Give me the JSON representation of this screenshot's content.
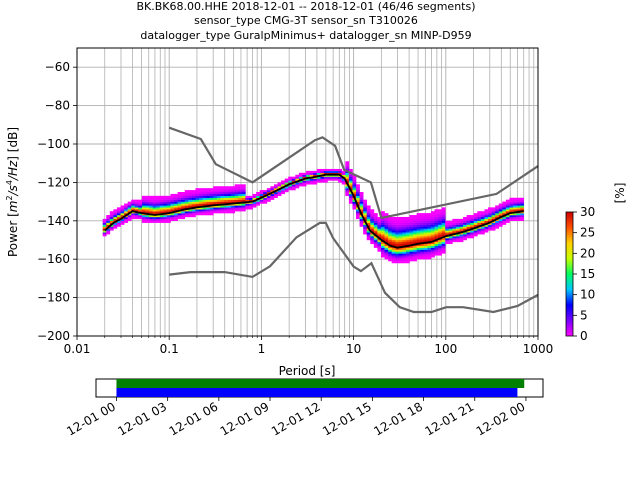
{
  "title": {
    "line1": "BK.BK68.00.HHE   2018-12-01 -- 2018-12-01  (46/46 segments)",
    "line2": "sensor_type CMG-3T sensor_sn T310026",
    "line3": "datalogger_type GuralpMinimus+ datalogger_sn MINP-D959"
  },
  "chart_data": [
    {
      "type": "heatmap",
      "xlabel": "Period [s]",
      "ylabel_main": "Power [",
      "ylabel_m": "m",
      "ylabel_2": "2",
      "ylabel_s": "/s",
      "ylabel_4": "4",
      "ylabel_hz": "/Hz",
      "ylabel_end": "] [dB]",
      "xscale": "log",
      "xlim": [
        0.01,
        1000
      ],
      "ylim": [
        -200,
        -50
      ],
      "grid": true,
      "x_ticks": [
        0.01,
        0.1,
        1,
        10,
        100,
        1000
      ],
      "x_tick_labels": [
        "0.01",
        "0.1",
        "1",
        "10",
        "100",
        "1000"
      ],
      "y_ticks": [
        -200,
        -180,
        -160,
        -140,
        -120,
        -100,
        -80,
        -60
      ],
      "y_tick_labels": [
        "−200",
        "−180",
        "−160",
        "−140",
        "−120",
        "−100",
        "−80",
        "−60"
      ],
      "colorbar": {
        "label": "[%]",
        "range": [
          0,
          30
        ],
        "ticks": [
          0,
          5,
          10,
          15,
          20,
          25,
          30
        ],
        "tick_labels": [
          "0",
          "5",
          "10",
          "15",
          "20",
          "25",
          "30"
        ],
        "colors": [
          "#ff00ff",
          "#7700ff",
          "#0000ff",
          "#00c8ff",
          "#00ff60",
          "#c8ff00",
          "#ffd000",
          "#ff5000",
          "#cc0000"
        ]
      },
      "mode_curve": {
        "periods": [
          0.02,
          0.025,
          0.03,
          0.04,
          0.05,
          0.07,
          0.1,
          0.15,
          0.2,
          0.3,
          0.5,
          0.8,
          1,
          1.5,
          2,
          3,
          4,
          5,
          6,
          7,
          8,
          10,
          12,
          15,
          20,
          25,
          30,
          40,
          50,
          70,
          100,
          150,
          200,
          300,
          400,
          500,
          700
        ],
        "power": [
          -145,
          -141,
          -139,
          -135,
          -136,
          -137,
          -136,
          -134,
          -133,
          -132,
          -131,
          -130,
          -128,
          -124,
          -121,
          -118,
          -117,
          -116,
          -116,
          -116,
          -118,
          -127,
          -136,
          -145,
          -150,
          -153,
          -154,
          -153,
          -152,
          -151,
          -148,
          -146,
          -144,
          -141,
          -138,
          -136,
          -135
        ]
      },
      "nhnm": {
        "periods": [
          0.1,
          0.22,
          0.32,
          0.8,
          3.8,
          4.6,
          6.3,
          7.9,
          15.4,
          20,
          354.8,
          1000
        ],
        "power": [
          -91.5,
          -97.4,
          -110.5,
          -120,
          -98,
          -96.5,
          -101,
          -113.5,
          -120,
          -138.5,
          -126,
          -111.5
        ]
      },
      "nlnm": {
        "periods": [
          0.1,
          0.17,
          0.4,
          0.8,
          1.24,
          2.4,
          4.3,
          5,
          6,
          10,
          12,
          15.6,
          21.9,
          31.6,
          45,
          70,
          101,
          154,
          328,
          600,
          1000
        ],
        "power": [
          -168,
          -166.7,
          -166.7,
          -169.2,
          -163.7,
          -148.6,
          -141.1,
          -141.1,
          -149,
          -163.8,
          -166.2,
          -162.1,
          -177.5,
          -185,
          -187.5,
          -187.5,
          -185,
          -185,
          -187.5,
          -184.4,
          -178.6
        ]
      }
    },
    {
      "type": "timeline",
      "x_ticks": [
        0,
        3,
        6,
        9,
        12,
        15,
        18,
        21,
        24
      ],
      "x_tick_labels": [
        "12-01 00",
        "12-01 03",
        "12-01 06",
        "12-01 09",
        "12-01 12",
        "12-01 15",
        "12-01 18",
        "12-01 21",
        "12-02 00"
      ],
      "xlim_hours": [
        -1.2,
        25.0
      ],
      "bars": [
        {
          "color": "#008000",
          "start_h": 0.0,
          "end_h": 23.9
        },
        {
          "color": "#0000ff",
          "start_h": 0.0,
          "end_h": 23.5
        }
      ]
    }
  ]
}
